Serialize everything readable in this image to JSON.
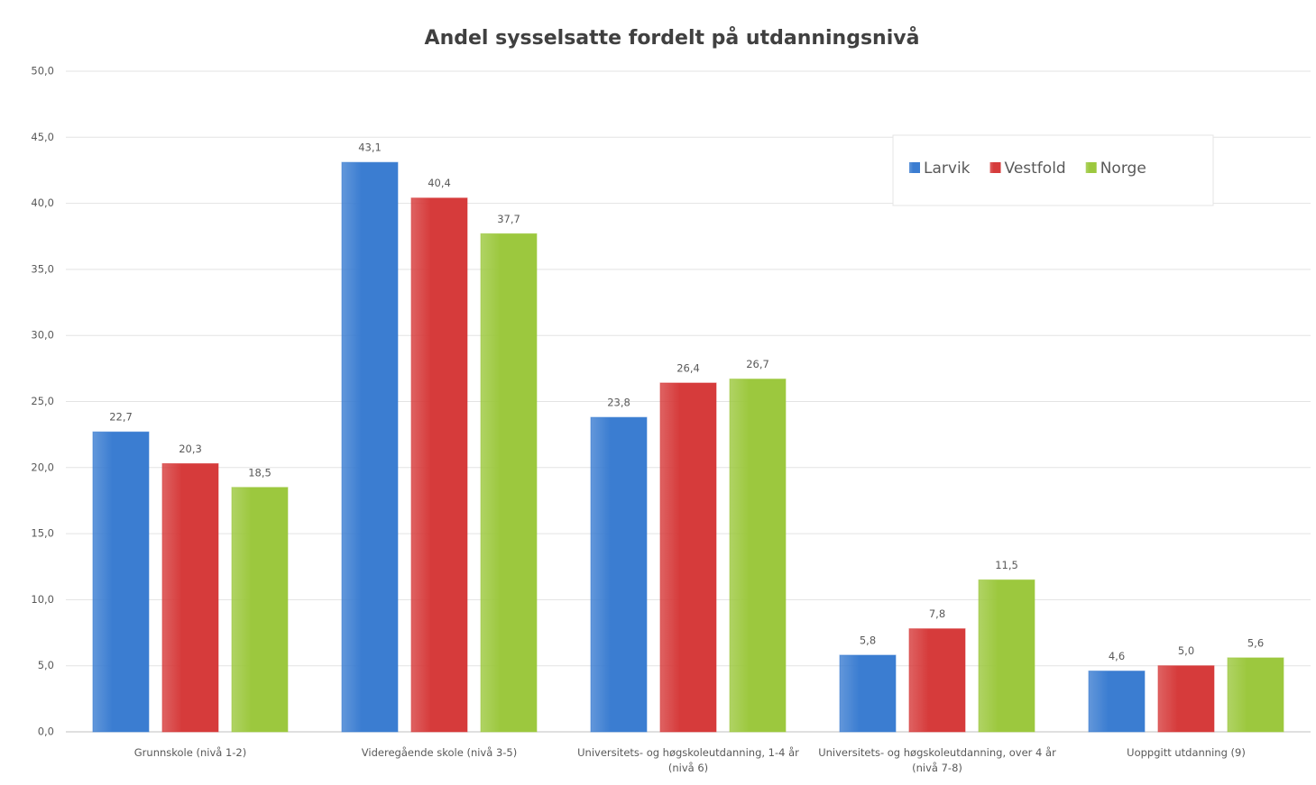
{
  "chart_data": {
    "type": "bar",
    "title": "Andel sysselsatte fordelt på utdanningsnivå",
    "categories": [
      "Grunnskole (nivå 1-2)",
      "Videregående skole (nivå 3-5)",
      "Universitets- og høgskoleutdanning, 1-4 år (nivå 6)",
      "Universitets- og høgskoleutdanning, over 4 år (nivå 7-8)",
      "Uoppgitt utdanning (9)"
    ],
    "series": [
      {
        "name": "Larvik",
        "color": "#3b7dd1",
        "values": [
          22.7,
          43.1,
          23.8,
          5.8,
          4.6
        ],
        "value_labels": [
          "22,7",
          "43,1",
          "23,8",
          "5,8",
          "4,6"
        ]
      },
      {
        "name": "Vestfold",
        "color": "#d63b3b",
        "values": [
          20.3,
          40.4,
          26.4,
          7.8,
          5.0
        ],
        "value_labels": [
          "20,3",
          "40,4",
          "26,4",
          "7,8",
          "5,0"
        ]
      },
      {
        "name": "Norge",
        "color": "#9cc83e",
        "values": [
          18.5,
          37.7,
          26.7,
          11.5,
          5.6
        ],
        "value_labels": [
          "18,5",
          "37,7",
          "26,7",
          "11,5",
          "5,6"
        ]
      }
    ],
    "ylim": [
      0,
      50
    ],
    "yticks": [
      {
        "value": 0,
        "label": "0,0"
      },
      {
        "value": 5,
        "label": "5,0"
      },
      {
        "value": 10,
        "label": "10,0"
      },
      {
        "value": 15,
        "label": "15,0"
      },
      {
        "value": 20,
        "label": "20,0"
      },
      {
        "value": 25,
        "label": "25,0"
      },
      {
        "value": 30,
        "label": "30,0"
      },
      {
        "value": 35,
        "label": "35,0"
      },
      {
        "value": 40,
        "label": "40,0"
      },
      {
        "value": 45,
        "label": "45,0"
      },
      {
        "value": 50,
        "label": "50,0"
      }
    ],
    "grid": true,
    "legend": "upper right"
  }
}
